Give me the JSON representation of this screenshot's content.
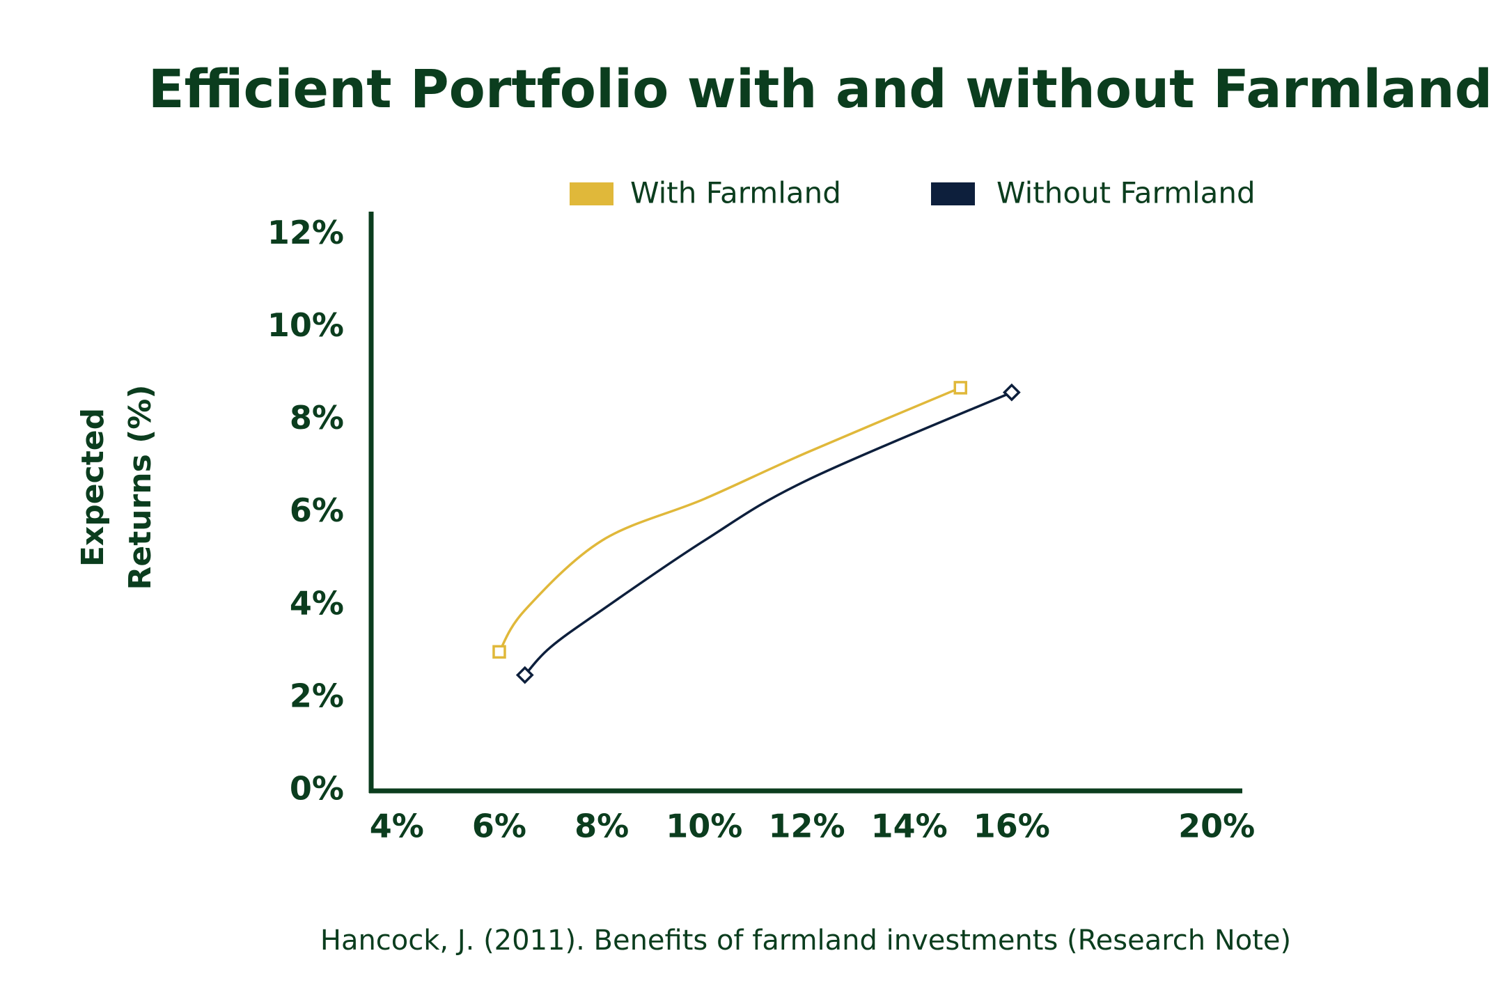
{
  "chart_data": {
    "type": "line",
    "title": "Efficient Portfolio with and without Farmland",
    "ylabel": "Expected Returns (%)",
    "source": "Hancock, J. (2011). Benefits of farmland investments (Research Note)",
    "series": [
      {
        "name": "With Farmland",
        "color": "#e0b83a",
        "marker": "square",
        "x": [
          6,
          6.5,
          8,
          10,
          12,
          15
        ],
        "values": [
          3.0,
          3.9,
          5.4,
          6.3,
          7.3,
          8.7
        ]
      },
      {
        "name": "Without Farmland",
        "color": "#0d1f3c",
        "marker": "diamond",
        "x": [
          6.5,
          7,
          8,
          10,
          12,
          16
        ],
        "values": [
          2.5,
          3.1,
          3.9,
          5.4,
          6.7,
          8.6
        ]
      }
    ],
    "xlim": [
      3.5,
      20.5
    ],
    "xticks": [
      {
        "value": 4,
        "label": "4%"
      },
      {
        "value": 6,
        "label": "6%"
      },
      {
        "value": 8,
        "label": "8%"
      },
      {
        "value": 10,
        "label": "10%"
      },
      {
        "value": 12,
        "label": "12%"
      },
      {
        "value": 14,
        "label": "14%"
      },
      {
        "value": 16,
        "label": "16%"
      },
      {
        "value": 20,
        "label": "20%"
      }
    ],
    "ylim": [
      0,
      12.5
    ],
    "yticks": [
      {
        "value": 0,
        "label": "0%"
      },
      {
        "value": 2,
        "label": "2%"
      },
      {
        "value": 4,
        "label": "4%"
      },
      {
        "value": 6,
        "label": "6%"
      },
      {
        "value": 8,
        "label": "8%"
      },
      {
        "value": 10,
        "label": "10%"
      },
      {
        "value": 12,
        "label": "12%"
      }
    ],
    "grid": false,
    "legend": "top"
  }
}
